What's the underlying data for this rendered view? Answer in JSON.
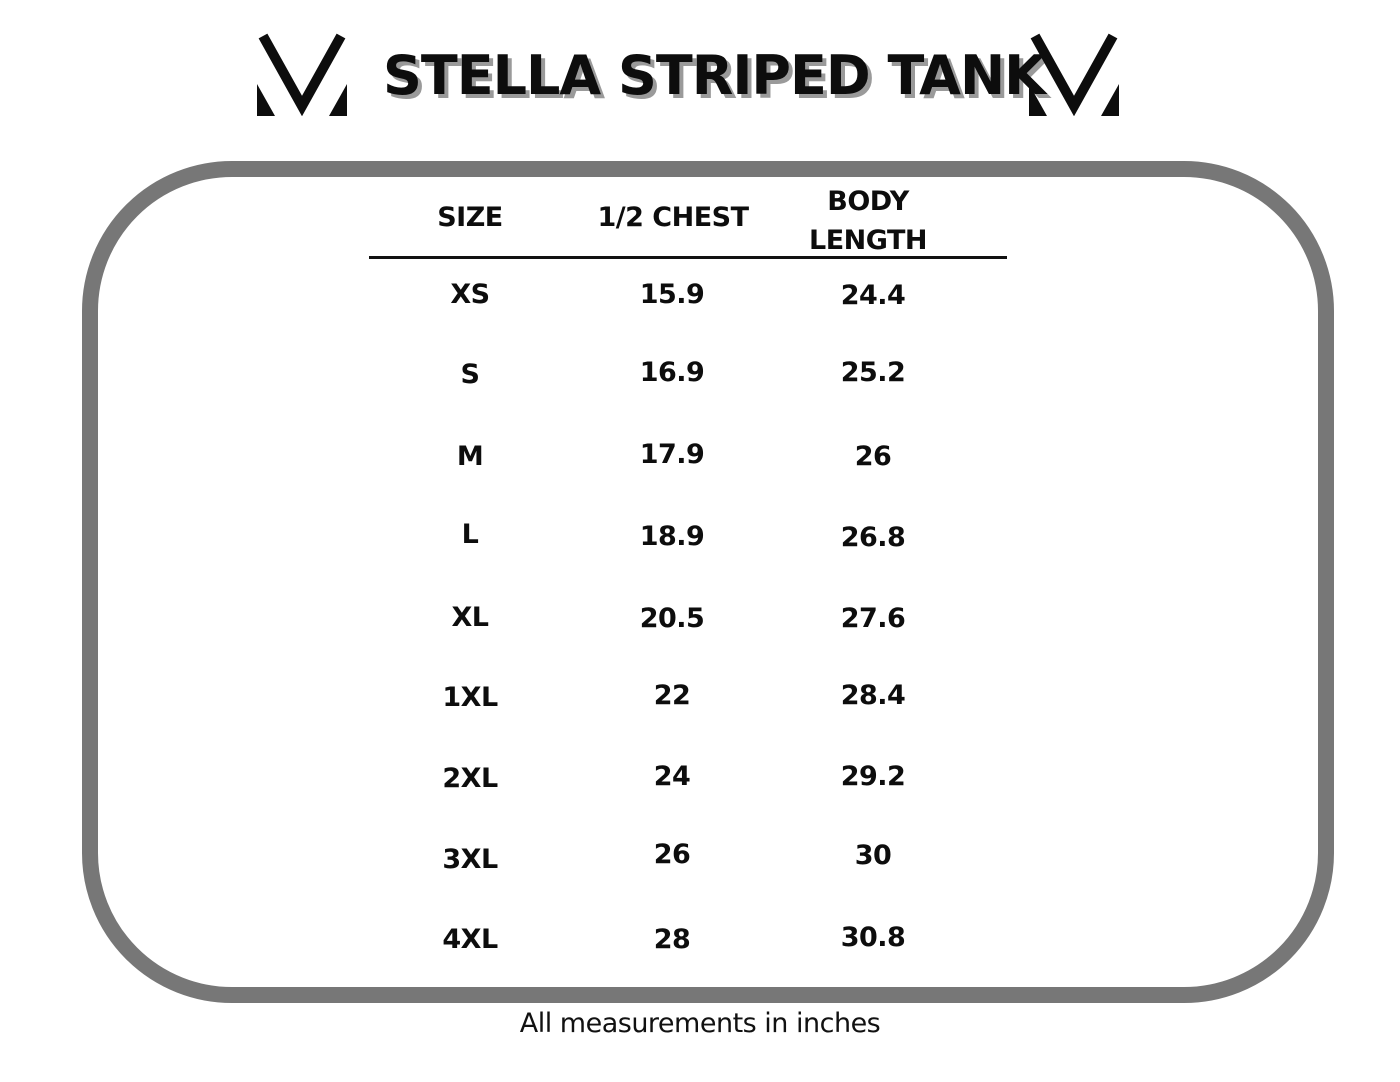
{
  "title": "STELLA STRIPED TANK",
  "logo_icon": "v-chevron-logo-icon",
  "colors": {
    "frame_border": "#777777",
    "title_shadow": "#9a9a9a",
    "text": "#0d0d0d"
  },
  "table": {
    "headers": {
      "size": "SIZE",
      "chest": "1/2 CHEST",
      "length_line1": "BODY",
      "length_line2": "LENGTH"
    },
    "rows": [
      {
        "size": "XS",
        "chest": "15.9",
        "length": "24.4"
      },
      {
        "size": "S",
        "chest": "16.9",
        "length": "25.2"
      },
      {
        "size": "M",
        "chest": "17.9",
        "length": "26"
      },
      {
        "size": "L",
        "chest": "18.9",
        "length": "26.8"
      },
      {
        "size": "XL",
        "chest": "20.5",
        "length": "27.6"
      },
      {
        "size": "1XL",
        "chest": "22",
        "length": "28.4"
      },
      {
        "size": "2XL",
        "chest": "24",
        "length": "29.2"
      },
      {
        "size": "3XL",
        "chest": "26",
        "length": "30"
      },
      {
        "size": "4XL",
        "chest": "28",
        "length": "30.8"
      }
    ]
  },
  "footnote": "All measurements in inches"
}
